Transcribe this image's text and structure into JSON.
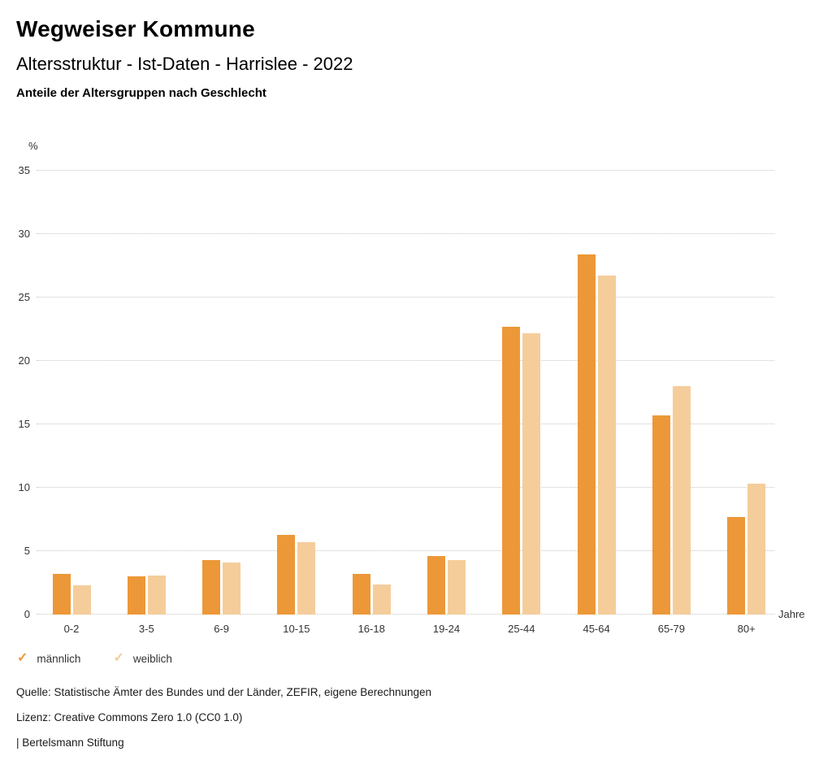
{
  "header": {
    "title": "Wegweiser Kommune",
    "subtitle": "Altersstruktur - Ist-Daten - Harrislee - 2022",
    "caption": "Anteile der Altersgruppen nach Geschlecht"
  },
  "chart_data": {
    "type": "bar",
    "categories": [
      "0-2",
      "3-5",
      "6-9",
      "10-15",
      "16-18",
      "19-24",
      "25-44",
      "45-64",
      "65-79",
      "80+"
    ],
    "series": [
      {
        "name": "männlich",
        "color": "#EC9838",
        "values": [
          3.2,
          3.0,
          4.3,
          6.3,
          3.2,
          4.6,
          22.7,
          28.4,
          15.7,
          7.7
        ]
      },
      {
        "name": "weiblich",
        "color": "#F5CD9B",
        "values": [
          2.3,
          3.1,
          4.1,
          5.7,
          2.4,
          4.3,
          22.2,
          26.7,
          18.0,
          10.3
        ]
      }
    ],
    "title": "Anteile der Altersgruppen nach Geschlecht",
    "ylabel": "%",
    "xlabel": "Jahre",
    "ylim": [
      0,
      35
    ],
    "ytick_step": 5,
    "grid": "horizontal-dotted",
    "legend_position": "bottom-left"
  },
  "legend": {
    "items": [
      {
        "check": "✓",
        "label": "männlich",
        "color": "#EC9838"
      },
      {
        "check": "✓",
        "label": "weiblich",
        "color": "#F5CD9B"
      }
    ]
  },
  "footer": {
    "source": "Quelle: Statistische Ämter des Bundes und der Länder, ZEFIR, eigene Berechnungen",
    "license": "Lizenz: Creative Commons Zero 1.0 (CC0 1.0)",
    "attribution": "| Bertelsmann Stiftung"
  }
}
